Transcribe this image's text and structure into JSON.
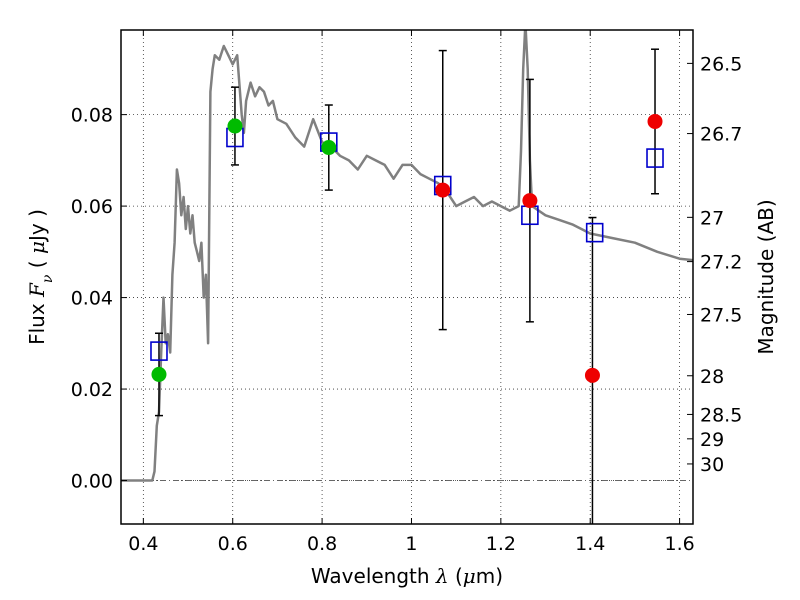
{
  "chart_data": {
    "type": "scatter",
    "xlabel_text": "Wavelength  ",
    "xlabel_symbol": "λ",
    "xlabel_unit_open": " (",
    "xlabel_unit_mu": "μ",
    "xlabel_unit_close": "m)",
    "ylabel_text": "Flux  ",
    "ylabel_symbol_F": "F",
    "ylabel_symbol_sub": "ν",
    "ylabel_unit_open": " (  ",
    "ylabel_unit_mu": "μ",
    "ylabel_unit_close": "Jy )",
    "y2label": "Magnitude (AB)",
    "xlim": [
      0.35,
      1.63
    ],
    "ylim": [
      -0.0095,
      0.0985
    ],
    "grid": true,
    "x_ticks": [
      {
        "value": 0.4,
        "label": "0.4"
      },
      {
        "value": 0.6,
        "label": "0.6"
      },
      {
        "value": 0.8,
        "label": "0.8"
      },
      {
        "value": 1.0,
        "label": "1"
      },
      {
        "value": 1.2,
        "label": "1.2"
      },
      {
        "value": 1.4,
        "label": "1.4"
      },
      {
        "value": 1.6,
        "label": "1.6"
      }
    ],
    "y_ticks": [
      {
        "value": 0.0,
        "label": "0.00"
      },
      {
        "value": 0.02,
        "label": "0.02"
      },
      {
        "value": 0.04,
        "label": "0.04"
      },
      {
        "value": 0.06,
        "label": "0.06"
      },
      {
        "value": 0.08,
        "label": "0.08"
      }
    ],
    "mag_ticks": [
      {
        "value": 26.5,
        "label": "26.5"
      },
      {
        "value": 26.7,
        "label": "26.7"
      },
      {
        "value": 27.0,
        "label": "27"
      },
      {
        "value": 27.2,
        "label": "27.2"
      },
      {
        "value": 27.5,
        "label": "27.5"
      },
      {
        "value": 28.0,
        "label": "28"
      },
      {
        "value": 28.5,
        "label": "28.5"
      },
      {
        "value": 29.0,
        "label": "29"
      },
      {
        "value": 30.0,
        "label": "30"
      }
    ],
    "colors": {
      "model": "#808080",
      "model_photometry": "#0000cc",
      "optical_points": "#00bb00",
      "nir_points": "#ee0000",
      "errorbar": "#000000"
    },
    "model_sed": [
      [
        0.35,
        0.0
      ],
      [
        0.42,
        0.0
      ],
      [
        0.425,
        0.002
      ],
      [
        0.43,
        0.012
      ],
      [
        0.435,
        0.015
      ],
      [
        0.44,
        0.028
      ],
      [
        0.445,
        0.04
      ],
      [
        0.45,
        0.03
      ],
      [
        0.455,
        0.032
      ],
      [
        0.46,
        0.028
      ],
      [
        0.465,
        0.045
      ],
      [
        0.47,
        0.052
      ],
      [
        0.475,
        0.068
      ],
      [
        0.48,
        0.065
      ],
      [
        0.485,
        0.058
      ],
      [
        0.49,
        0.062
      ],
      [
        0.495,
        0.055
      ],
      [
        0.5,
        0.06
      ],
      [
        0.505,
        0.054
      ],
      [
        0.51,
        0.058
      ],
      [
        0.515,
        0.052
      ],
      [
        0.52,
        0.05
      ],
      [
        0.525,
        0.048
      ],
      [
        0.53,
        0.052
      ],
      [
        0.535,
        0.04
      ],
      [
        0.54,
        0.045
      ],
      [
        0.545,
        0.03
      ],
      [
        0.55,
        0.085
      ],
      [
        0.555,
        0.09
      ],
      [
        0.56,
        0.093
      ],
      [
        0.57,
        0.092
      ],
      [
        0.58,
        0.095
      ],
      [
        0.59,
        0.093
      ],
      [
        0.6,
        0.091
      ],
      [
        0.61,
        0.093
      ],
      [
        0.62,
        0.08
      ],
      [
        0.625,
        0.076
      ],
      [
        0.63,
        0.083
      ],
      [
        0.64,
        0.087
      ],
      [
        0.65,
        0.084
      ],
      [
        0.66,
        0.086
      ],
      [
        0.67,
        0.085
      ],
      [
        0.68,
        0.082
      ],
      [
        0.69,
        0.083
      ],
      [
        0.7,
        0.079
      ],
      [
        0.72,
        0.078
      ],
      [
        0.74,
        0.075
      ],
      [
        0.76,
        0.073
      ],
      [
        0.78,
        0.079
      ],
      [
        0.8,
        0.074
      ],
      [
        0.82,
        0.073
      ],
      [
        0.84,
        0.071
      ],
      [
        0.86,
        0.07
      ],
      [
        0.88,
        0.068
      ],
      [
        0.9,
        0.071
      ],
      [
        0.92,
        0.07
      ],
      [
        0.94,
        0.069
      ],
      [
        0.96,
        0.066
      ],
      [
        0.98,
        0.069
      ],
      [
        1.0,
        0.069
      ],
      [
        1.02,
        0.067
      ],
      [
        1.04,
        0.066
      ],
      [
        1.06,
        0.065
      ],
      [
        1.08,
        0.063
      ],
      [
        1.1,
        0.06
      ],
      [
        1.12,
        0.061
      ],
      [
        1.14,
        0.062
      ],
      [
        1.16,
        0.06
      ],
      [
        1.18,
        0.061
      ],
      [
        1.2,
        0.06
      ],
      [
        1.22,
        0.059
      ],
      [
        1.24,
        0.06
      ],
      [
        1.245,
        0.072
      ],
      [
        1.25,
        0.09
      ],
      [
        1.255,
        0.1
      ],
      [
        1.26,
        0.09
      ],
      [
        1.265,
        0.07
      ],
      [
        1.27,
        0.06
      ],
      [
        1.3,
        0.058
      ],
      [
        1.33,
        0.057
      ],
      [
        1.36,
        0.056
      ],
      [
        1.4,
        0.054
      ],
      [
        1.45,
        0.053
      ],
      [
        1.5,
        0.052
      ],
      [
        1.55,
        0.05
      ],
      [
        1.6,
        0.0485
      ],
      [
        1.63,
        0.0482
      ]
    ],
    "model_photometry": [
      {
        "x": 0.435,
        "y": 0.0283
      },
      {
        "x": 0.605,
        "y": 0.075
      },
      {
        "x": 0.815,
        "y": 0.074
      },
      {
        "x": 1.07,
        "y": 0.0645
      },
      {
        "x": 1.265,
        "y": 0.058
      },
      {
        "x": 1.41,
        "y": 0.0542
      },
      {
        "x": 1.545,
        "y": 0.0705
      }
    ],
    "optical_observed": [
      {
        "x": 0.435,
        "y": 0.0232,
        "err": 0.009
      },
      {
        "x": 0.605,
        "y": 0.0775,
        "err": 0.0085
      },
      {
        "x": 0.815,
        "y": 0.0728,
        "err": 0.0093
      }
    ],
    "nir_observed": [
      {
        "x": 1.07,
        "y": 0.0635,
        "err": 0.0305
      },
      {
        "x": 1.265,
        "y": 0.0612,
        "err": 0.0265
      },
      {
        "x": 1.405,
        "y": 0.023,
        "err": 0.0345
      },
      {
        "x": 1.545,
        "y": 0.0785,
        "err": 0.0158
      }
    ]
  }
}
